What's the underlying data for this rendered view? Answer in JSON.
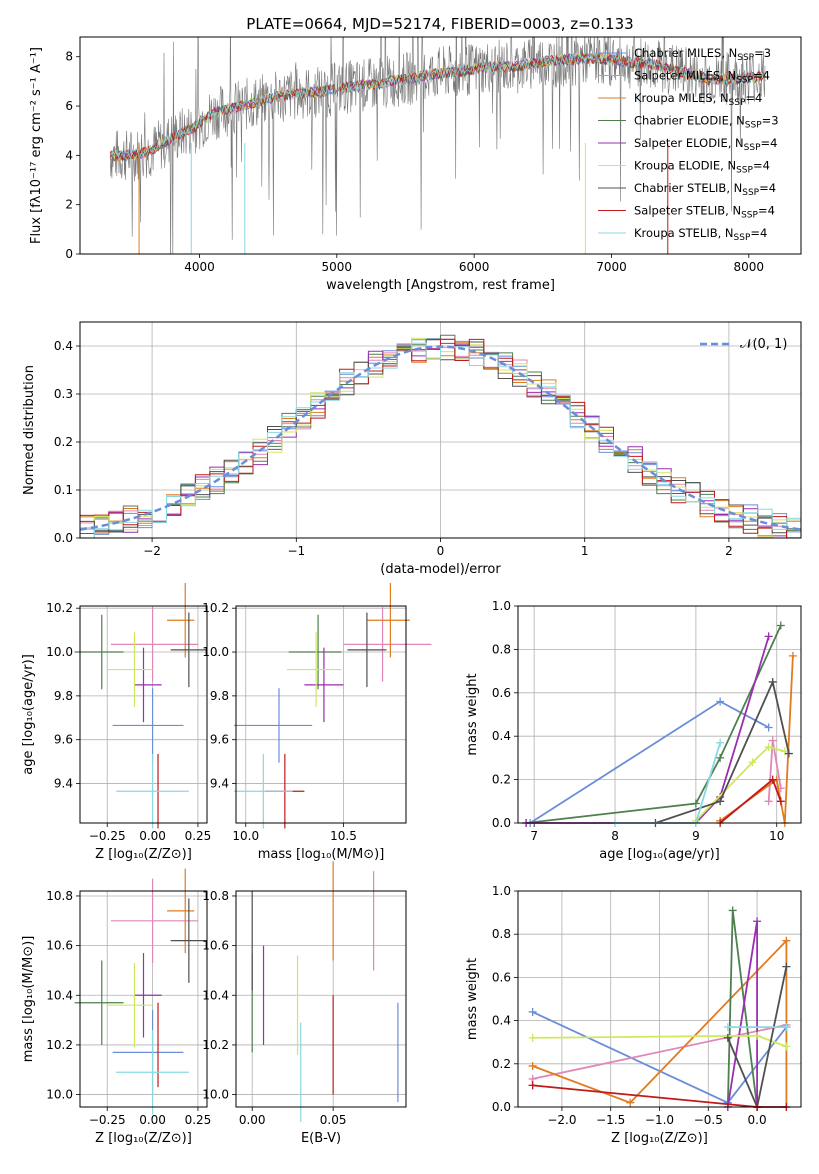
{
  "figure": {
    "title": "PLATE=0664, MJD=52174, FIBERID=0003, z=0.133",
    "colors": {
      "chabrier_miles": "#6a8ed8",
      "salpeter_miles": "#e087b8",
      "kroupa_miles": "#e07b20",
      "chabrier_elodie": "#4e7f4e",
      "salpeter_elodie": "#9a2fb0",
      "kroupa_elodie": "#cfe860",
      "chabrier_stelib": "#505050",
      "salpeter_stelib": "#c01a1a",
      "kroupa_stelib": "#8ad8e0",
      "observed": "#777777"
    }
  },
  "chart_data": [
    {
      "id": "spectrum",
      "type": "line",
      "xlabel": "wavelength [Angstrom, rest frame]",
      "ylabel": "Flux [fλ10⁻¹⁷ erg cm⁻² s⁻¹ A⁻¹]",
      "xlim": [
        3130,
        8380
      ],
      "ylim": [
        0,
        8.8
      ],
      "xticks": [
        "4000",
        "5000",
        "6000",
        "7000",
        "8000"
      ],
      "yticks": [
        "0",
        "2",
        "4",
        "6",
        "8"
      ],
      "legend_position": "top-right",
      "series": [
        {
          "name": "Chabrier MILES, NSSP=3"
        },
        {
          "name": "Salpeter MILES, NSSP=4"
        },
        {
          "name": "Kroupa MILES, NSSP=4"
        },
        {
          "name": "Chabrier ELODIE, NSSP=3"
        },
        {
          "name": "Salpeter ELODIE, NSSP=4"
        },
        {
          "name": "Kroupa ELODIE, NSSP=4"
        },
        {
          "name": "Chabrier STELIB, NSSP=4"
        },
        {
          "name": "Salpeter STELIB, NSSP=4"
        },
        {
          "name": "Kroupa STELIB, NSSP=4"
        }
      ],
      "legend_html": [
        "Chabrier MILES, N<tspan font-size=\"9\" dy=\"3\">SSP</tspan><tspan dy=\"-3\">=3</tspan>",
        "Salpeter MILES, N<tspan font-size=\"9\" dy=\"3\">SSP</tspan><tspan dy=\"-3\">=4</tspan>",
        "Kroupa MILES, N<tspan font-size=\"9\" dy=\"3\">SSP</tspan><tspan dy=\"-3\">=4</tspan>",
        "Chabrier ELODIE, N<tspan font-size=\"9\" dy=\"3\">SSP</tspan><tspan dy=\"-3\">=3</tspan>",
        "Salpeter ELODIE, N<tspan font-size=\"9\" dy=\"3\">SSP</tspan><tspan dy=\"-3\">=4</tspan>",
        "Kroupa ELODIE, N<tspan font-size=\"9\" dy=\"3\">SSP</tspan><tspan dy=\"-3\">=4</tspan>",
        "Chabrier STELIB, N<tspan font-size=\"9\" dy=\"3\">SSP</tspan><tspan dy=\"-3\">=4</tspan>",
        "Salpeter STELIB, N<tspan font-size=\"9\" dy=\"3\">SSP</tspan><tspan dy=\"-3\">=4</tspan>",
        "Kroupa STELIB, N<tspan font-size=\"9\" dy=\"3\">SSP</tspan><tspan dy=\"-3\">=4</tspan>"
      ],
      "continuum": {
        "wavelength": [
          3350,
          3500,
          3650,
          3800,
          3950,
          4100,
          4300,
          4500,
          4700,
          4900,
          5100,
          5300,
          5500,
          5700,
          5900,
          6100,
          6300,
          6500,
          6700,
          6900,
          7100,
          7300,
          7500,
          7700,
          7900,
          8100
        ],
        "flux": [
          4.0,
          4.0,
          4.2,
          4.7,
          5.1,
          5.7,
          6.0,
          6.3,
          6.5,
          6.6,
          6.8,
          6.9,
          7.1,
          7.3,
          7.4,
          7.6,
          7.6,
          7.8,
          7.9,
          7.95,
          7.8,
          7.7,
          7.4,
          7.1,
          7.1,
          7.2
        ]
      }
    },
    {
      "id": "residuals",
      "type": "line",
      "xlabel": "(data-model)/error",
      "ylabel": "Normed distribution",
      "xlim": [
        -2.5,
        2.5
      ],
      "ylim": [
        0,
        0.45
      ],
      "xticks": [
        "−2",
        "−1",
        "0",
        "1",
        "2"
      ],
      "yticks": [
        "0.0",
        "0.1",
        "0.2",
        "0.3",
        "0.4"
      ],
      "legend": "𝒩(0, 1)",
      "histogram_bin_width": 0.1
    },
    {
      "id": "age-vs-Z",
      "type": "scatter",
      "xlabel": "Z [log₁₀(Z/Z⊙)]",
      "ylabel": "age  [log₁₀(age/yr)]",
      "xlim": [
        -0.4,
        0.3
      ],
      "ylim": [
        9.22,
        10.21
      ],
      "xticks": [
        "−0.25",
        "0.00",
        "0.25"
      ],
      "yticks": [
        "9.4",
        "9.6",
        "9.8",
        "10.0",
        "10.2"
      ]
    },
    {
      "id": "age-vs-mass",
      "type": "scatter",
      "xlabel": "mass [log₁₀(M/M⊙)]",
      "ylabel": "",
      "xlim": [
        9.95,
        10.82
      ],
      "ylim": [
        9.22,
        10.21
      ],
      "xticks": [
        "10.0",
        "10.5"
      ],
      "yticks": [
        "9.4",
        "9.6",
        "9.8",
        "10.0",
        "10.2"
      ]
    },
    {
      "id": "weight-vs-age",
      "type": "line",
      "xlabel": "age  [log₁₀(age/yr)]",
      "ylabel": "mass weight",
      "xlim": [
        6.8,
        10.3
      ],
      "ylim": [
        0,
        1
      ],
      "xticks": [
        "7",
        "8",
        "9",
        "10"
      ],
      "yticks": [
        "0.0",
        "0.2",
        "0.4",
        "0.6",
        "0.8",
        "1.0"
      ]
    },
    {
      "id": "mass-vs-Z",
      "type": "scatter",
      "xlabel": "Z [log₁₀(Z/Z⊙)]",
      "ylabel": "mass [log₁₀(M/M⊙)]",
      "xlim": [
        -0.4,
        0.3
      ],
      "ylim": [
        9.95,
        10.82
      ],
      "xticks": [
        "−0.25",
        "0.00",
        "0.25"
      ],
      "yticks": [
        "10.0",
        "10.2",
        "10.4",
        "10.6",
        "10.8"
      ]
    },
    {
      "id": "mass-vs-EBV",
      "type": "scatter",
      "xlabel": "E(B-V)",
      "ylabel": "",
      "xlim": [
        -0.01,
        0.095
      ],
      "ylim": [
        9.95,
        10.82
      ],
      "xticks": [
        "0.00",
        "0.05"
      ],
      "yticks": [
        "10.0",
        "10.2",
        "10.4",
        "10.6",
        "10.8"
      ]
    },
    {
      "id": "weight-vs-Z",
      "type": "line",
      "xlabel": "Z [log₁₀(Z/Z⊙)]",
      "ylabel": "mass weight",
      "xlim": [
        -2.45,
        0.45
      ],
      "ylim": [
        0,
        1
      ],
      "xticks": [
        "−2.0",
        "−1.5",
        "−1.0",
        "−0.5",
        "0.0"
      ],
      "yticks": [
        "0.0",
        "0.2",
        "0.4",
        "0.6",
        "0.8",
        "1.0"
      ]
    }
  ],
  "fits": [
    {
      "key": "chabrier_miles",
      "age": 9.665,
      "ageErr": [
        0.0,
        0.0
      ],
      "Z": 0.0,
      "Zerr": [
        -0.22,
        0.17
      ],
      "mass": 10.17,
      "massErr": [
        -0.23,
        0.17
      ],
      "ebv": 0.09,
      "ebvErr": [
        0.0,
        0.0
      ],
      "ageW": [
        [
          6.95,
          0.0
        ],
        [
          9.3,
          0.56
        ],
        [
          9.9,
          0.44
        ]
      ],
      "Zw": [
        [
          -2.3,
          0.44
        ],
        [
          -0.3,
          0.02
        ],
        [
          0.3,
          0.37
        ]
      ]
    },
    {
      "key": "salpeter_miles",
      "age": 10.035,
      "Z": 0.0,
      "Zerr": [
        -0.23,
        0.25
      ],
      "mass": 10.7,
      "massErr": [
        -0.2,
        0.25
      ],
      "ebv": 0.075,
      "ageW": [
        [
          9.9,
          0.1
        ],
        [
          9.95,
          0.38
        ],
        [
          10.05,
          0.16
        ]
      ],
      "Zw": [
        [
          -2.3,
          0.1
        ],
        [
          -2.3,
          0.13
        ],
        [
          0.3,
          0.38
        ]
      ]
    },
    {
      "key": "kroupa_miles",
      "age": 10.145,
      "Z": 0.18,
      "Zerr": [
        -0.1,
        0.05
      ],
      "mass": 10.74,
      "massErr": [
        -0.12,
        0.1
      ],
      "ebv": 0.05,
      "ageW": [
        [
          9.3,
          0.01
        ],
        [
          10.0,
          0.2
        ],
        [
          10.1,
          0.0
        ],
        [
          10.2,
          0.77
        ]
      ],
      "Zw": [
        [
          -2.3,
          0.19
        ],
        [
          -1.3,
          0.02
        ],
        [
          0.3,
          0.77
        ],
        [
          0.3,
          0.0
        ]
      ]
    },
    {
      "key": "chabrier_elodie",
      "age": 10.0,
      "Z": -0.28,
      "Zerr": [
        -0.15,
        0.12
      ],
      "mass": 10.37,
      "massErr": [
        -0.15,
        0.12
      ],
      "ebv": 0.0,
      "ageW": [
        [
          6.9,
          0.0
        ],
        [
          9.0,
          0.09
        ],
        [
          9.3,
          0.3
        ],
        [
          10.05,
          0.91
        ]
      ],
      "Zw": [
        [
          -0.3,
          0.0
        ],
        [
          -0.25,
          0.91
        ],
        [
          0.0,
          0.0
        ]
      ]
    },
    {
      "key": "salpeter_elodie",
      "age": 9.85,
      "Z": -0.05,
      "Zerr": [
        -0.05,
        0.1
      ],
      "mass": 10.4,
      "massErr": [
        -0.1,
        0.1
      ],
      "ebv": 0.007,
      "ageW": [
        [
          6.9,
          0.0
        ],
        [
          9.0,
          0.0
        ],
        [
          9.3,
          0.12
        ],
        [
          9.9,
          0.86
        ]
      ],
      "Zw": [
        [
          -0.3,
          0.0
        ],
        [
          0.0,
          0.86
        ],
        [
          0.0,
          0.0
        ]
      ]
    },
    {
      "key": "kroupa_elodie",
      "age": 9.92,
      "Z": -0.1,
      "Zerr": [
        -0.15,
        0.1
      ],
      "mass": 10.36,
      "massErr": [
        -0.15,
        0.13
      ],
      "ebv": 0.028,
      "ageW": [
        [
          9.0,
          0.01
        ],
        [
          9.7,
          0.28
        ],
        [
          9.9,
          0.35
        ],
        [
          10.1,
          0.33
        ]
      ],
      "Zw": [
        [
          -2.3,
          0.32
        ],
        [
          0.0,
          0.33
        ],
        [
          0.3,
          0.28
        ]
      ]
    },
    {
      "key": "chabrier_stelib",
      "age": 10.01,
      "Z": 0.2,
      "Zerr": [
        -0.1,
        0.1
      ],
      "mass": 10.62,
      "massErr": [
        -0.1,
        0.1
      ],
      "ebv": 0.0,
      "ageW": [
        [
          8.5,
          0.0
        ],
        [
          9.3,
          0.1
        ],
        [
          9.95,
          0.65
        ],
        [
          10.15,
          0.32
        ]
      ],
      "Zw": [
        [
          -0.3,
          0.32
        ],
        [
          0.0,
          0.0
        ],
        [
          0.3,
          0.65
        ]
      ]
    },
    {
      "key": "salpeter_stelib",
      "age": 9.365,
      "Z": 0.03,
      "Zerr": [
        0.0,
        0.0
      ],
      "mass": 10.2,
      "massErr": [
        -0.1,
        0.1
      ],
      "ebv": 0.05,
      "ageW": [
        [
          9.3,
          0.0
        ],
        [
          9.95,
          0.2
        ],
        [
          10.05,
          0.1
        ]
      ],
      "Zw": [
        [
          -2.3,
          0.1
        ],
        [
          0.0,
          0.0
        ],
        [
          0.3,
          0.0
        ]
      ]
    },
    {
      "key": "kroupa_stelib",
      "age": 9.365,
      "Z": 0.0,
      "Zerr": [
        -0.2,
        0.2
      ],
      "mass": 10.09,
      "massErr": [
        -0.15,
        0.15
      ],
      "ebv": 0.03,
      "ageW": [
        [
          8.0,
          0.0
        ],
        [
          9.0,
          0.0
        ],
        [
          9.3,
          0.37
        ]
      ],
      "Zw": [
        [
          -0.3,
          0.37
        ],
        [
          0.3,
          0.37
        ]
      ]
    }
  ]
}
